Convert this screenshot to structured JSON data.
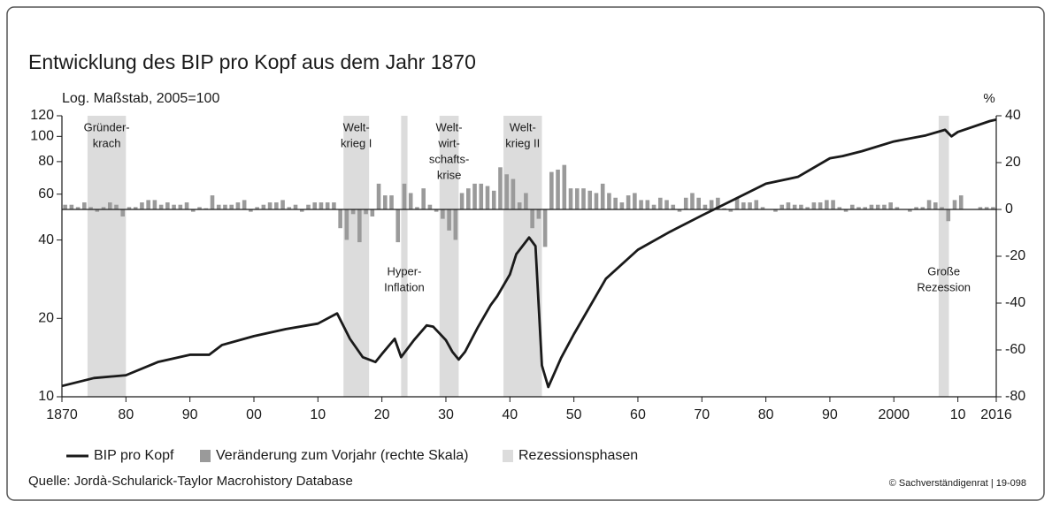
{
  "chart_data": {
    "type": "line",
    "title": "Entwicklung des BIP pro Kopf aus dem Jahr 1870",
    "subtitle": "Log. Maßstab, 2005=100",
    "y2_label": "%",
    "log_scale": true,
    "xlim": [
      1870,
      2016
    ],
    "xticks": [
      1870,
      {
        "value": 1880,
        "label": "80"
      },
      {
        "value": 1890,
        "label": "90"
      },
      {
        "value": 1900,
        "label": "00"
      },
      {
        "value": 1910,
        "label": "10"
      },
      {
        "value": 1920,
        "label": "20"
      },
      {
        "value": 1930,
        "label": "30"
      },
      {
        "value": 1940,
        "label": "40"
      },
      {
        "value": 1950,
        "label": "50"
      },
      {
        "value": 1960,
        "label": "60"
      },
      {
        "value": 1970,
        "label": "70"
      },
      {
        "value": 1980,
        "label": "80"
      },
      {
        "value": 1990,
        "label": "90"
      },
      2000,
      {
        "value": 2010,
        "label": "10"
      },
      2016
    ],
    "ylim": [
      10,
      120
    ],
    "yticks": [
      10,
      20,
      40,
      60,
      80,
      100,
      120
    ],
    "y2lim": [
      -80,
      40
    ],
    "y2ticks": [
      -80,
      -60,
      -40,
      -20,
      0,
      20,
      40
    ],
    "series": [
      {
        "name": "BIP pro Kopf",
        "type": "line",
        "color": "#1a1a1a",
        "x": [
          1870,
          1875,
          1880,
          1885,
          1890,
          1893,
          1895,
          1900,
          1905,
          1910,
          1913,
          1915,
          1917,
          1919,
          1920,
          1922,
          1923,
          1925,
          1927,
          1928,
          1930,
          1931,
          1932,
          1933,
          1935,
          1937,
          1938,
          1940,
          1941,
          1943,
          1944,
          1945,
          1946,
          1948,
          1950,
          1955,
          1960,
          1965,
          1970,
          1975,
          1980,
          1985,
          1990,
          1992,
          1995,
          2000,
          2005,
          2008,
          2009,
          2010,
          2015,
          2016
        ],
        "values": [
          11.0,
          11.8,
          12.1,
          13.6,
          14.5,
          14.5,
          15.8,
          17.1,
          18.2,
          19.1,
          20.9,
          16.7,
          14.2,
          13.6,
          14.6,
          16.7,
          14.2,
          16.5,
          18.8,
          18.6,
          16.5,
          14.9,
          13.9,
          14.9,
          18.5,
          22.5,
          24.3,
          29.5,
          35.3,
          40.9,
          37.9,
          13.2,
          10.9,
          14.1,
          17.4,
          28.4,
          36.7,
          43,
          49.7,
          57.2,
          65.8,
          69.9,
          82.4,
          84,
          87.7,
          95.6,
          100.9,
          106,
          100,
          104,
          114.5,
          116
        ]
      },
      {
        "name": "Veränderung zum Vorjahr (rechte Skala)",
        "type": "bar",
        "axis": "y2",
        "color": "#9a9a9a",
        "x": [
          1871,
          1872,
          1873,
          1874,
          1875,
          1876,
          1877,
          1878,
          1879,
          1880,
          1881,
          1882,
          1883,
          1884,
          1885,
          1886,
          1887,
          1888,
          1889,
          1890,
          1891,
          1892,
          1893,
          1894,
          1895,
          1896,
          1897,
          1898,
          1899,
          1900,
          1901,
          1902,
          1903,
          1904,
          1905,
          1906,
          1907,
          1908,
          1909,
          1910,
          1911,
          1912,
          1913,
          1914,
          1915,
          1916,
          1917,
          1918,
          1919,
          1920,
          1921,
          1922,
          1923,
          1924,
          1925,
          1926,
          1927,
          1928,
          1929,
          1930,
          1931,
          1932,
          1933,
          1934,
          1935,
          1936,
          1937,
          1938,
          1939,
          1940,
          1941,
          1942,
          1943,
          1944,
          1945,
          1946,
          1947,
          1948,
          1949,
          1950,
          1951,
          1952,
          1953,
          1954,
          1955,
          1956,
          1957,
          1958,
          1959,
          1960,
          1961,
          1962,
          1963,
          1964,
          1965,
          1966,
          1967,
          1968,
          1969,
          1970,
          1971,
          1972,
          1973,
          1974,
          1975,
          1976,
          1977,
          1978,
          1979,
          1980,
          1981,
          1982,
          1983,
          1984,
          1985,
          1986,
          1987,
          1988,
          1989,
          1990,
          1991,
          1992,
          1993,
          1994,
          1995,
          1996,
          1997,
          1998,
          1999,
          2000,
          2001,
          2002,
          2003,
          2004,
          2005,
          2006,
          2007,
          2008,
          2009,
          2010,
          2011,
          2012,
          2013,
          2014,
          2015,
          2016
        ],
        "values": [
          2,
          2,
          1,
          3,
          1,
          -1,
          1,
          3,
          2,
          -3,
          1,
          1,
          3,
          4,
          4,
          2,
          3,
          2,
          2,
          3,
          -1,
          1,
          0.5,
          6,
          2,
          2,
          2,
          3,
          4,
          -1,
          1,
          2,
          3,
          3,
          4,
          1,
          2,
          -1,
          2,
          3,
          3,
          3,
          3,
          -8,
          -13,
          -2,
          -14,
          -2,
          -3,
          11,
          6,
          6,
          -14,
          11,
          7,
          1,
          9,
          2,
          -1,
          -4,
          -9,
          -13,
          7,
          9,
          11,
          11,
          10,
          8,
          18,
          15,
          13,
          3,
          7,
          -8,
          -4,
          -16,
          16,
          17,
          19,
          9,
          9,
          9,
          8,
          7,
          11,
          7,
          5,
          3,
          6,
          7,
          4,
          4,
          2,
          5,
          4,
          2,
          -1,
          5,
          7,
          5,
          2,
          4,
          5,
          0.5,
          -1,
          5,
          3,
          3,
          4,
          1,
          0,
          -1,
          2,
          3,
          2,
          2,
          1,
          3,
          3,
          4,
          4,
          1,
          -1,
          2,
          1,
          1,
          2,
          2,
          2,
          3,
          1,
          0,
          -1,
          1,
          1,
          4,
          3,
          1,
          -5,
          4,
          6,
          0,
          0,
          1,
          1,
          1
        ]
      }
    ],
    "recession_name": "Rezessionsphasen",
    "recession_color": "#dcdcdc",
    "recessions": [
      {
        "start": 1874,
        "end": 1880,
        "label": [
          "Gründer-",
          "krach"
        ]
      },
      {
        "start": 1914,
        "end": 1918,
        "label": [
          "Welt-",
          "krieg I"
        ]
      },
      {
        "start": 1923,
        "end": 1924,
        "label": [
          "Hyper-",
          "Inflation"
        ]
      },
      {
        "start": 1929,
        "end": 1932,
        "label": [
          "Welt-",
          "wirt-",
          "schafts-",
          "krise"
        ]
      },
      {
        "start": 1939,
        "end": 1945,
        "label": [
          "Welt-",
          "krieg II"
        ]
      },
      {
        "start": 2007,
        "end": 2008.6,
        "label": [
          "Große",
          "Rezession"
        ]
      }
    ],
    "source": "Quelle: Jordà-Schularick-Taylor Macrohistory Database",
    "credit": "© Sachverständigenrat | 19-098"
  }
}
